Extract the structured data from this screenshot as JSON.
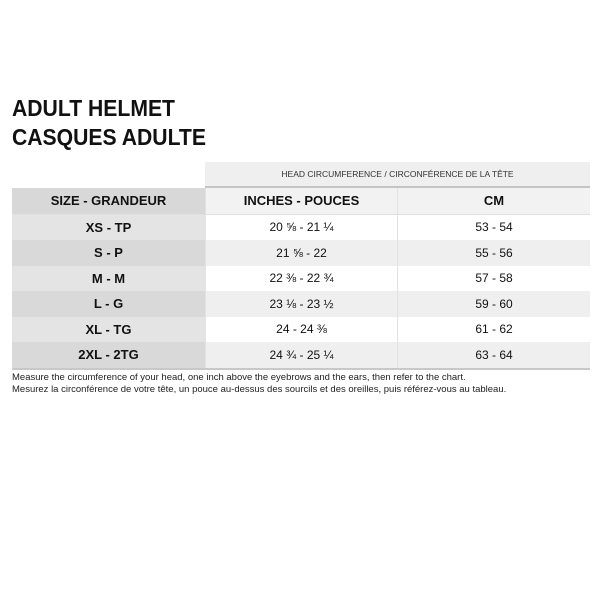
{
  "title": [
    "ADULT HELMET",
    "CASQUES ADULTE"
  ],
  "table": {
    "group_header": "HEAD CIRCUMFERENCE / CIRCONFÉRENCE DE LA TÊTE",
    "columns": [
      "SIZE - GRANDEUR",
      "INCHES - POUCES",
      "CM"
    ],
    "rows": [
      [
        "XS - TP",
        "20 ⅝ - 21 ¼",
        "53 - 54"
      ],
      [
        "S - P",
        "21 ⅝ - 22",
        "55 - 56"
      ],
      [
        "M - M",
        "22 ⅜ - 22 ¾",
        "57 - 58"
      ],
      [
        "L - G",
        "23 ⅛ - 23 ½",
        "59 - 60"
      ],
      [
        "XL - TG",
        "24 - 24 ⅜",
        "61 - 62"
      ],
      [
        "2XL - 2TG",
        "24 ¾ - 25 ¼",
        "63 - 64"
      ]
    ]
  },
  "notes": [
    "Measure the circumference of your head, one inch above the eyebrows and the ears, then refer to the chart.",
    "Mesurez la circonférence de votre tête, un pouce au-dessus des sourcils et des oreilles, puis référez-vous au tableau."
  ]
}
